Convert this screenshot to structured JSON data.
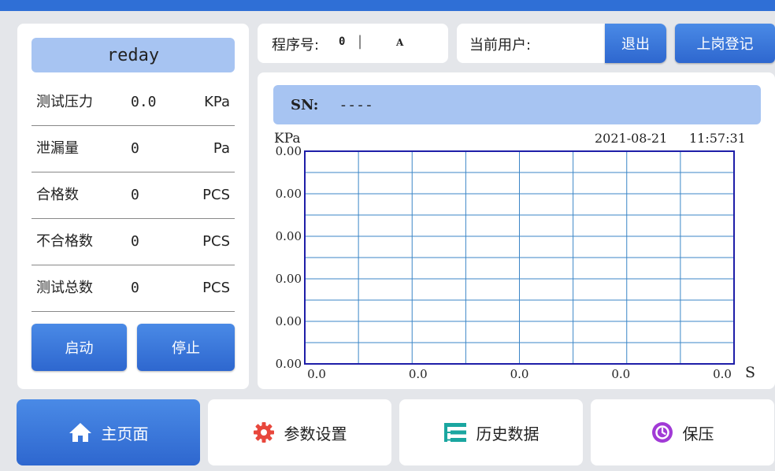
{
  "status": "reday",
  "stats": [
    {
      "label": "测试压力",
      "value": "0.0",
      "unit": "KPa"
    },
    {
      "label": "泄漏量",
      "value": "0",
      "unit": "Pa"
    },
    {
      "label": "合格数",
      "value": "0",
      "unit": "PCS"
    },
    {
      "label": "不合格数",
      "value": "0",
      "unit": "PCS"
    },
    {
      "label": "测试总数",
      "value": "0",
      "unit": "PCS"
    }
  ],
  "buttons": {
    "start": "启动",
    "stop": "停止",
    "logout": "退出",
    "login": "上岗登记"
  },
  "program": {
    "label": "程序号:",
    "number": "0",
    "separator": "|",
    "code": "A"
  },
  "user": {
    "label": "当前用户:",
    "name": ""
  },
  "sn": {
    "label": "SN:",
    "value": "----"
  },
  "chart_data": {
    "type": "line",
    "ylabel": "KPa",
    "xlabel": "S",
    "date": "2021-08-21",
    "time": "11:57:31",
    "y_ticks": [
      "0.00",
      "0.00",
      "0.00",
      "0.00",
      "0.00",
      "0.00"
    ],
    "x_ticks": [
      "0.0",
      "0.0",
      "0.0",
      "0.0",
      "0.0"
    ],
    "series": [],
    "grid": true,
    "colors": {
      "frame": "#1e1ea8",
      "grid": "#3b86c7"
    }
  },
  "nav": [
    {
      "label": "主页面",
      "icon": "home-icon",
      "active": true
    },
    {
      "label": "参数设置",
      "icon": "gear-icon",
      "active": false
    },
    {
      "label": "历史数据",
      "icon": "list-tree-icon",
      "active": false
    },
    {
      "label": "保压",
      "icon": "timer-icon",
      "active": false
    }
  ],
  "colors": {
    "accent": "#2e67cf",
    "status_bg": "#a7c4f2",
    "gear": "#e8473c",
    "list": "#1aa6a0",
    "timer": "#a13ad6"
  }
}
